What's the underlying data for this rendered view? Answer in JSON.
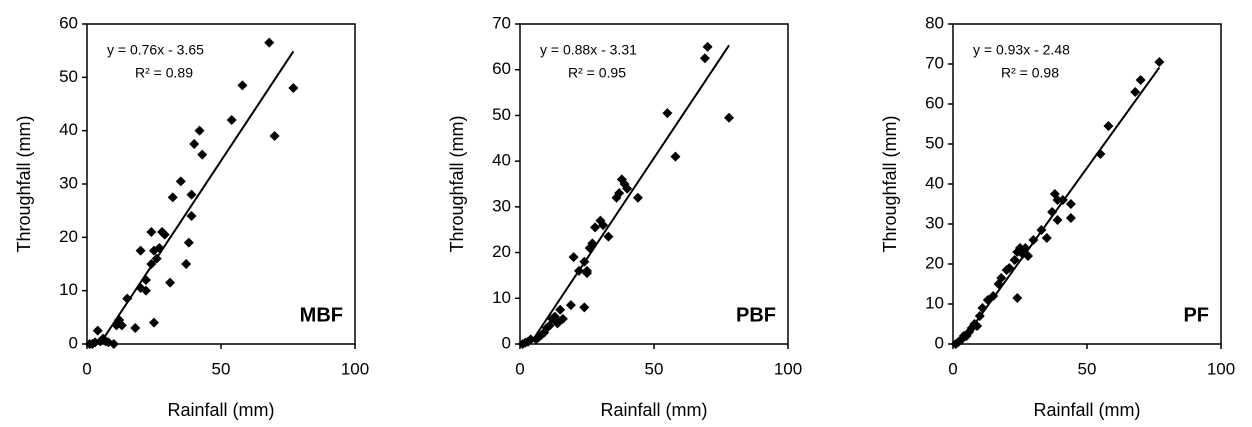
{
  "chart_data": [
    {
      "type": "scatter",
      "label": "MBF",
      "x_label": "Rainfall (mm)",
      "y_label": "Throughfall (mm)",
      "color": "#000000",
      "equation": "y = 0.76x - 3.65",
      "r2": "R² = 0.89",
      "slope": 0.76,
      "intercept": -3.65,
      "xlim": [
        0,
        100
      ],
      "xticks": [
        0,
        50,
        100
      ],
      "ylim": [
        0,
        60
      ],
      "yticks": [
        0,
        10,
        20,
        30,
        40,
        50,
        60
      ],
      "x": [
        1,
        2,
        3,
        4,
        5,
        6,
        7,
        8,
        10,
        11,
        12,
        13,
        15,
        18,
        20,
        20,
        22,
        22,
        24,
        24,
        25,
        25,
        26,
        27,
        28,
        29,
        31,
        32,
        35,
        37,
        38,
        39,
        39,
        40,
        42,
        43,
        54,
        58,
        68,
        70,
        77
      ],
      "values": [
        0,
        0,
        0.3,
        2.5,
        0.5,
        1,
        0.5,
        0.3,
        0,
        3.5,
        4.5,
        3.5,
        8.5,
        3,
        17.5,
        10.5,
        10,
        12,
        15,
        21,
        4,
        17.5,
        16,
        18,
        21,
        20.5,
        11.5,
        27.5,
        30.5,
        15,
        19,
        24,
        28,
        37.5,
        40,
        35.5,
        42,
        48.5,
        56.5,
        39,
        48
      ]
    },
    {
      "type": "scatter",
      "label": "PBF",
      "x_label": "Rainfall (mm)",
      "y_label": "Throughfall (mm)",
      "color": "#000000",
      "equation": "y = 0.88x - 3.31",
      "r2": "R² = 0.95",
      "slope": 0.88,
      "intercept": -3.31,
      "xlim": [
        0,
        100
      ],
      "xticks": [
        0,
        50,
        100
      ],
      "ylim": [
        0,
        70
      ],
      "yticks": [
        0,
        10,
        20,
        30,
        40,
        50,
        60,
        70
      ],
      "x": [
        1,
        2,
        3,
        4,
        6,
        7,
        8,
        9,
        10,
        11,
        12,
        13,
        14,
        15,
        16,
        19,
        20,
        22,
        24,
        24,
        25,
        25,
        26,
        27,
        28,
        30,
        31,
        33,
        36,
        37,
        38,
        39,
        40,
        44,
        55,
        58,
        69,
        70,
        78
      ],
      "values": [
        0,
        0.3,
        0.5,
        1,
        1,
        1.5,
        2,
        2.5,
        3.5,
        4,
        5.5,
        6,
        4.5,
        7.5,
        5.5,
        8.5,
        19,
        16,
        8,
        18,
        15.5,
        16,
        21,
        22,
        25.5,
        27,
        26,
        23.5,
        32,
        33,
        36,
        35,
        34,
        32,
        50.5,
        41,
        62.5,
        65,
        49.5
      ]
    },
    {
      "type": "scatter",
      "label": "PF",
      "x_label": "Rainfall (mm)",
      "y_label": "Throughfall (mm)",
      "color": "#000000",
      "equation": "y = 0.93x - 2.48",
      "r2": "R² = 0.98",
      "slope": 0.93,
      "intercept": -2.48,
      "xlim": [
        0,
        100
      ],
      "xticks": [
        0,
        50,
        100
      ],
      "ylim": [
        0,
        80
      ],
      "yticks": [
        0,
        10,
        20,
        30,
        40,
        50,
        60,
        70,
        80
      ],
      "x": [
        1,
        2,
        3,
        4,
        5,
        6,
        7,
        8,
        9,
        10,
        11,
        13,
        15,
        17,
        18,
        20,
        21,
        23,
        24,
        24,
        25,
        26,
        27,
        28,
        30,
        33,
        35,
        37,
        38,
        39,
        39,
        41,
        44,
        44,
        55,
        58,
        68,
        70,
        77
      ],
      "values": [
        0,
        0.5,
        1,
        2,
        2,
        3,
        4,
        5,
        4.5,
        7,
        9,
        11,
        12,
        15,
        16.5,
        18.5,
        19,
        21,
        11.5,
        23,
        24,
        22.5,
        24,
        22,
        26,
        28.5,
        26.5,
        33,
        37.5,
        31,
        36,
        36,
        31.5,
        35,
        47.5,
        54.5,
        63,
        66,
        70.5
      ]
    }
  ]
}
